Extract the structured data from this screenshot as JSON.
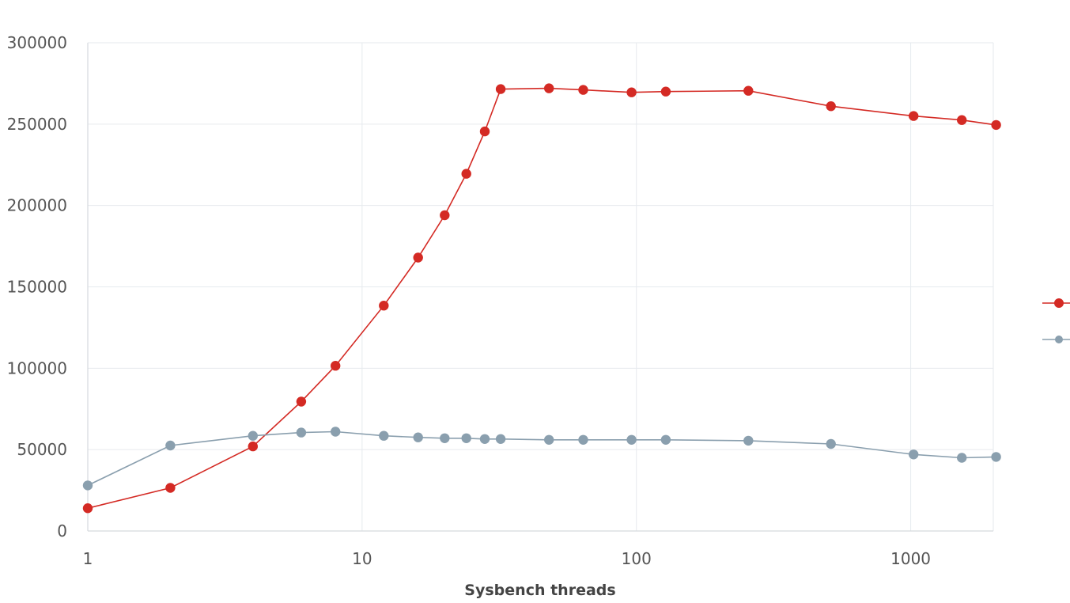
{
  "chart_data": {
    "type": "line",
    "title": "",
    "xlabel": "Sysbench threads",
    "ylabel": "",
    "x_scale": "log",
    "xlim": [
      1,
      2000
    ],
    "ylim": [
      0,
      300000
    ],
    "x_ticks": [
      "1",
      "10",
      "100",
      "1000"
    ],
    "y_ticks": [
      "0",
      "50000",
      "100000",
      "150000",
      "200000",
      "250000",
      "300000"
    ],
    "grid": true,
    "legend_position": "right",
    "series": [
      {
        "color": "#d42a24",
        "x": [
          1,
          2,
          4,
          6,
          8,
          12,
          16,
          20,
          24,
          28,
          32,
          48,
          64,
          96,
          128,
          256,
          512,
          1024,
          1536,
          2048
        ],
        "values": [
          14000,
          26500,
          52000,
          79500,
          101500,
          138500,
          168000,
          194000,
          219500,
          245500,
          271500,
          272000,
          271000,
          269500,
          270000,
          270500,
          261000,
          255000,
          252500,
          249500
        ]
      },
      {
        "color": "#8a9fae",
        "x": [
          1,
          2,
          4,
          6,
          8,
          12,
          16,
          20,
          24,
          28,
          32,
          48,
          64,
          96,
          128,
          256,
          512,
          1024,
          1536,
          2048
        ],
        "values": [
          28000,
          52500,
          58500,
          60500,
          61000,
          58500,
          57500,
          57000,
          57000,
          56500,
          56500,
          56000,
          56000,
          56000,
          56000,
          55500,
          53500,
          47000,
          45000,
          45500
        ]
      }
    ]
  }
}
